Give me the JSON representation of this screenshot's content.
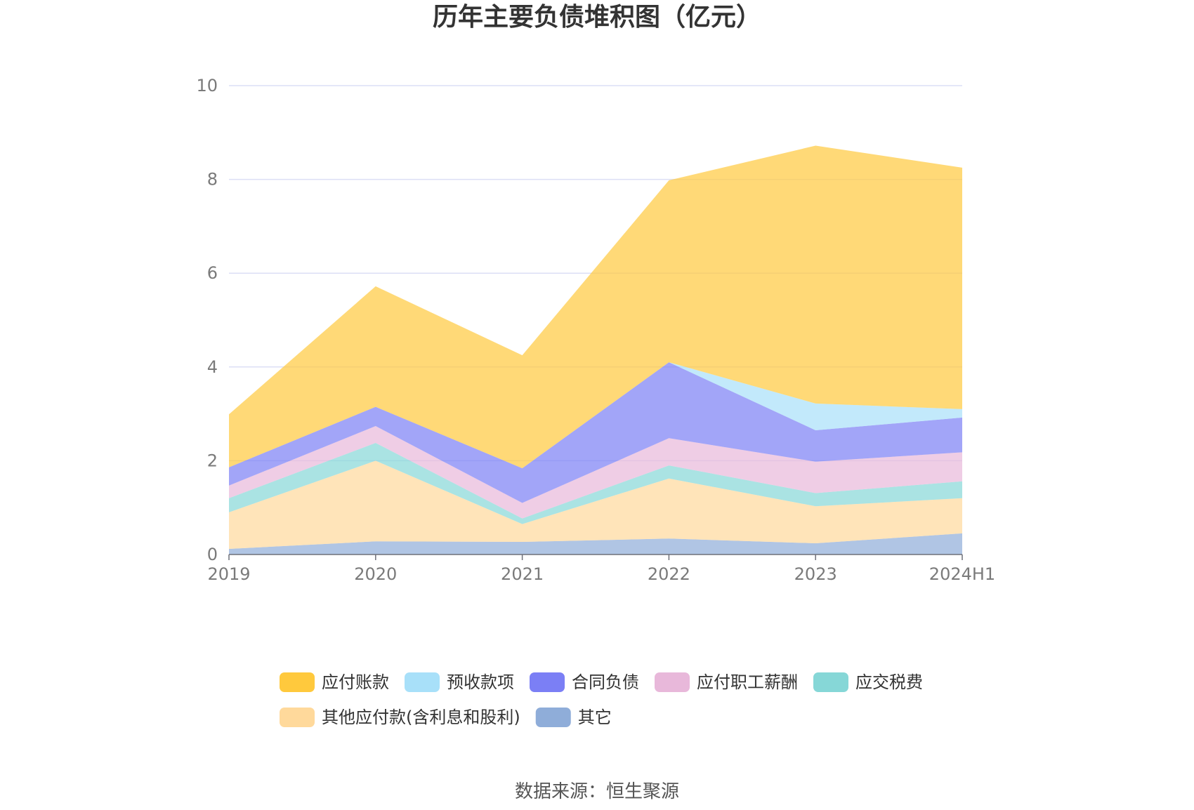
{
  "source": "数据来源：恒生聚源",
  "chart_data": {
    "type": "area",
    "stacked": true,
    "title": "历年主要负债堆积图（亿元）",
    "xlabel": "",
    "ylabel": "",
    "categories": [
      "2019",
      "2020",
      "2021",
      "2022",
      "2023",
      "2024H1"
    ],
    "ylim": [
      0,
      10
    ],
    "yticks": [
      0,
      2,
      4,
      6,
      8,
      10
    ],
    "grid": true,
    "legend_position": "bottom",
    "series": [
      {
        "name": "其它",
        "color": "#8fadd9",
        "values": [
          0.12,
          0.28,
          0.27,
          0.34,
          0.24,
          0.45
        ]
      },
      {
        "name": "其他应付款(含利息和股利)",
        "color": "#ffd99b",
        "values": [
          0.78,
          1.72,
          0.38,
          1.28,
          0.79,
          0.75
        ]
      },
      {
        "name": "应交税费",
        "color": "#86d7d7",
        "values": [
          0.3,
          0.38,
          0.12,
          0.28,
          0.28,
          0.36
        ]
      },
      {
        "name": "应付职工薪酬",
        "color": "#e8b8da",
        "values": [
          0.27,
          0.36,
          0.33,
          0.58,
          0.67,
          0.62
        ]
      },
      {
        "name": "合同负债",
        "color": "#7b7ff5",
        "values": [
          0.39,
          0.41,
          0.74,
          1.62,
          0.67,
          0.74
        ]
      },
      {
        "name": "预收款项",
        "color": "#a8e0f9",
        "values": [
          0.0,
          0.0,
          0.0,
          0.0,
          0.57,
          0.18
        ]
      },
      {
        "name": "应付账款",
        "color": "#ffc93d",
        "values": [
          1.13,
          2.57,
          2.41,
          3.88,
          5.5,
          5.15
        ]
      }
    ],
    "legend_order": [
      "应付账款",
      "预收款项",
      "合同负债",
      "应付职工薪酬",
      "应交税费",
      "其他应付款(含利息和股利)",
      "其它"
    ]
  }
}
